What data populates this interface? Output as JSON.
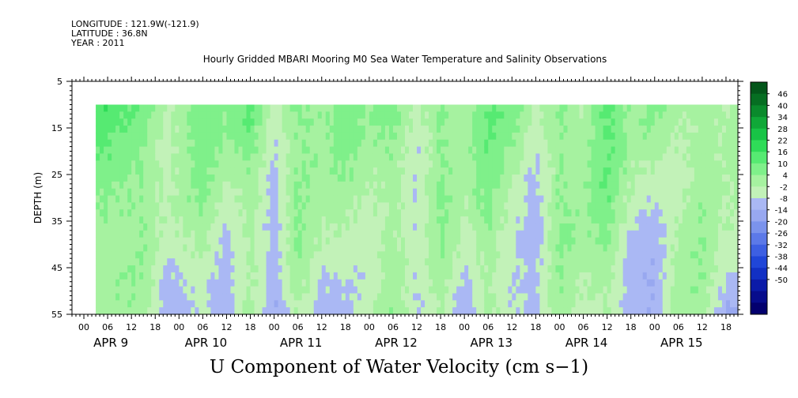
{
  "header": {
    "longitude": "LONGITUDE : 121.9W(-121.9)",
    "latitude": "LATITUDE : 36.8N",
    "year": "YEAR : 2011"
  },
  "title": "Hourly Gridded MBARI Mooring M0 Sea Water Temperature and Salinity Observations",
  "bottom_title": "U Component of Water Velocity (cm s−1)",
  "chart_data": {
    "type": "heatmap",
    "title": "Hourly Gridded MBARI Mooring M0 Sea Water Temperature and Salinity Observations",
    "variable": "U Component of Water Velocity (cm s−1)",
    "ylabel": "DEPTH (m)",
    "ylim": [
      5,
      55
    ],
    "y_inverted": true,
    "y_ticks": [
      "5",
      "15",
      "25",
      "35",
      "45",
      "55"
    ],
    "data_depth_range": [
      10,
      55
    ],
    "x_hour_ticks": [
      "00",
      "06",
      "12",
      "18",
      "00",
      "06",
      "12",
      "18",
      "00",
      "06",
      "12",
      "18",
      "00",
      "06",
      "12",
      "18",
      "00",
      "06",
      "12",
      "18",
      "00",
      "06",
      "12",
      "18",
      "00",
      "06",
      "12",
      "18"
    ],
    "x_day_labels": [
      "APR  9",
      "APR 10",
      "APR 11",
      "APR 12",
      "APR 13",
      "APR 14",
      "APR 15"
    ],
    "x_start_hour": -3,
    "x_end_hour": 165,
    "data_start_hour": 3,
    "data_end_hour": 165,
    "colorbar": {
      "levels": [
        -50,
        -44,
        -38,
        -32,
        -26,
        -20,
        -14,
        -8,
        -2,
        4,
        10,
        16,
        22,
        28,
        34,
        40,
        46
      ],
      "labels": [
        "46",
        "40",
        "34",
        "28",
        "22",
        "16",
        "10",
        "4",
        "-2",
        "-8",
        "-14",
        "-20",
        "-26",
        "-32",
        "-38",
        "-44",
        "-50"
      ],
      "colors": [
        "#03006e",
        "#070c8c",
        "#0b1ba8",
        "#1230c4",
        "#2046d8",
        "#3d5fe2",
        "#5c79e8",
        "#7b93ec",
        "#98a8f0",
        "#aab8f4",
        "#c2f2b8",
        "#a6f2a0",
        "#7ff08a",
        "#56ea72",
        "#2fdc58",
        "#18c446",
        "#10a838",
        "#0a8a2c",
        "#066e22",
        "#03561a"
      ]
    },
    "columns_by_time": [
      {
        "hour": 6,
        "surface": 18,
        "deep": 6
      },
      {
        "hour": 15,
        "surface": 16,
        "deep": 4
      },
      {
        "hour": 21,
        "surface": 6,
        "deep": -8
      },
      {
        "hour": 30,
        "surface": 14,
        "deep": 2
      },
      {
        "hour": 36,
        "surface": 8,
        "deep": -6
      },
      {
        "hour": 42,
        "surface": 16,
        "deep": 4
      },
      {
        "hour": 48,
        "surface": 4,
        "deep": -12
      },
      {
        "hour": 54,
        "surface": 14,
        "deep": 4
      },
      {
        "hour": 60,
        "surface": 10,
        "deep": -4
      },
      {
        "hour": 66,
        "surface": 12,
        "deep": -2
      },
      {
        "hour": 72,
        "surface": 6,
        "deep": 2
      },
      {
        "hour": 78,
        "surface": 12,
        "deep": 6
      },
      {
        "hour": 84,
        "surface": 4,
        "deep": -6
      },
      {
        "hour": 90,
        "surface": 14,
        "deep": 4
      },
      {
        "hour": 96,
        "surface": 6,
        "deep": -4
      },
      {
        "hour": 102,
        "surface": 14,
        "deep": 8
      },
      {
        "hour": 108,
        "surface": 10,
        "deep": -2
      },
      {
        "hour": 114,
        "surface": 2,
        "deep": -8
      },
      {
        "hour": 120,
        "surface": 14,
        "deep": 6
      },
      {
        "hour": 126,
        "surface": 8,
        "deep": 2
      },
      {
        "hour": 132,
        "surface": 18,
        "deep": 6
      },
      {
        "hour": 138,
        "surface": 6,
        "deep": -4
      },
      {
        "hour": 144,
        "surface": 10,
        "deep": -10
      },
      {
        "hour": 150,
        "surface": 6,
        "deep": 4
      },
      {
        "hour": 156,
        "surface": 10,
        "deep": 6
      },
      {
        "hour": 162,
        "surface": 8,
        "deep": -6
      }
    ]
  }
}
